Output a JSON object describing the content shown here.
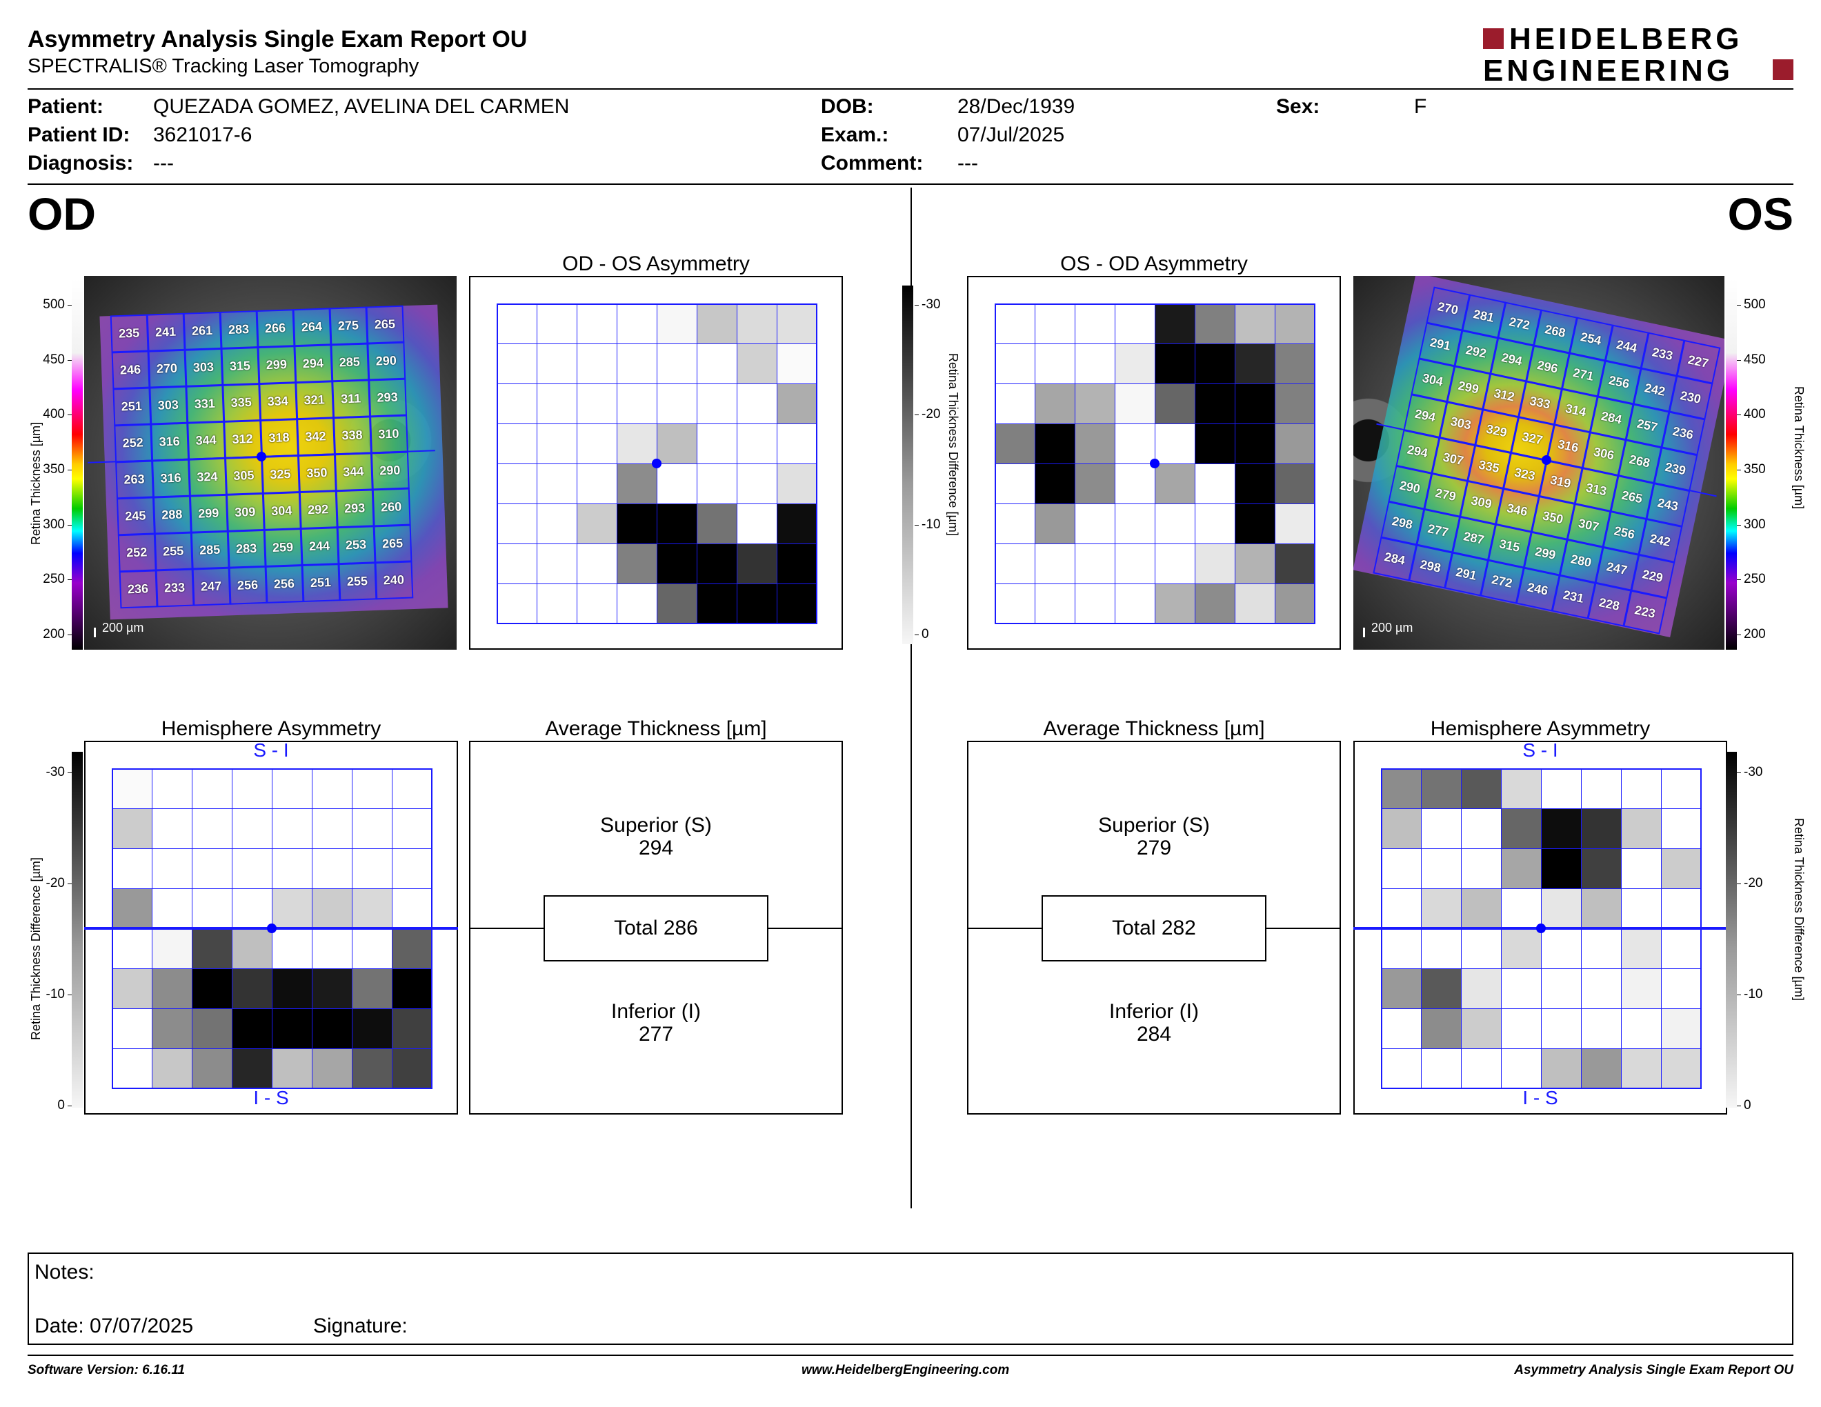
{
  "header": {
    "title": "Asymmetry Analysis Single Exam Report OU",
    "subtitle": "SPECTRALIS® Tracking Laser Tomography",
    "logo_line1": "HEIDELBERG",
    "logo_line2": "ENGINEERING",
    "logo_color": "#9b1c2c"
  },
  "patient": {
    "patient_label": "Patient:",
    "patient_value": "QUEZADA GOMEZ, AVELINA DEL CARMEN",
    "id_label": "Patient ID:",
    "id_value": "3621017-6",
    "diagnosis_label": "Diagnosis:",
    "diagnosis_value": "---",
    "dob_label": "DOB:",
    "dob_value": "28/Dec/1939",
    "exam_label": "Exam.:",
    "exam_value": "07/Jul/2025",
    "comment_label": "Comment:",
    "comment_value": "---",
    "sex_label": "Sex:",
    "sex_value": "F"
  },
  "eyes": {
    "od": "OD",
    "os": "OS"
  },
  "titles": {
    "od_os_asym": "OD - OS Asymmetry",
    "os_od_asym": "OS - OD Asymmetry",
    "hemi": "Hemisphere Asymmetry",
    "avg": "Average Thickness [µm]",
    "si": "S - I",
    "is": "I - S"
  },
  "axes": {
    "thickness_label": "Retina  Thickness [µm]",
    "thickness_ticks": [
      "500",
      "450",
      "400",
      "350",
      "300",
      "250",
      "200"
    ],
    "diff_label": "Retina Thickness Difference [µm]",
    "diff_ticks": [
      "-30",
      "-20",
      "-10",
      "0"
    ],
    "scale_bar": "200 µm"
  },
  "od": {
    "superior_label": "Superior (S)",
    "superior_value": "294",
    "total_label": "Total 286",
    "inferior_label": "Inferior (I)",
    "inferior_value": "277",
    "grid_values": [
      [
        "235",
        "241",
        "261",
        "283",
        "266",
        "264",
        "275",
        "265"
      ],
      [
        "246",
        "270",
        "303",
        "315",
        "299",
        "294",
        "285",
        "290"
      ],
      [
        "251",
        "303",
        "331",
        "335",
        "334",
        "321",
        "311",
        "293"
      ],
      [
        "252",
        "316",
        "344",
        "312",
        "318",
        "342",
        "338",
        "310"
      ],
      [
        "263",
        "316",
        "324",
        "305",
        "325",
        "350",
        "344",
        "290"
      ],
      [
        "245",
        "288",
        "299",
        "309",
        "304",
        "292",
        "293",
        "260"
      ],
      [
        "252",
        "255",
        "285",
        "283",
        "259",
        "244",
        "253",
        "265"
      ],
      [
        "236",
        "233",
        "247",
        "256",
        "256",
        "251",
        "255",
        "240"
      ]
    ],
    "asym_gray": [
      [
        0,
        0,
        0,
        0,
        3,
        22,
        14,
        12
      ],
      [
        0,
        0,
        0,
        0,
        0,
        0,
        18,
        2
      ],
      [
        0,
        0,
        0,
        0,
        0,
        0,
        0,
        32
      ],
      [
        0,
        0,
        0,
        10,
        25,
        0,
        0,
        0
      ],
      [
        0,
        0,
        0,
        45,
        0,
        0,
        0,
        12
      ],
      [
        0,
        0,
        20,
        100,
        100,
        55,
        0,
        95
      ],
      [
        0,
        0,
        0,
        50,
        100,
        100,
        80,
        100
      ],
      [
        0,
        0,
        0,
        0,
        60,
        100,
        100,
        100
      ]
    ],
    "hemi_gray": [
      [
        2,
        0,
        0,
        0,
        0,
        0,
        0,
        0
      ],
      [
        20,
        0,
        0,
        0,
        0,
        0,
        0,
        0
      ],
      [
        0,
        0,
        0,
        0,
        0,
        0,
        0,
        0
      ],
      [
        40,
        0,
        0,
        0,
        15,
        20,
        15,
        0
      ],
      [
        0,
        4,
        72,
        25,
        0,
        0,
        0,
        62
      ],
      [
        20,
        45,
        100,
        80,
        95,
        90,
        55,
        100
      ],
      [
        0,
        45,
        55,
        100,
        100,
        100,
        95,
        75
      ],
      [
        0,
        22,
        45,
        85,
        25,
        35,
        65,
        75
      ]
    ]
  },
  "os": {
    "superior_label": "Superior (S)",
    "superior_value": "279",
    "total_label": "Total 282",
    "inferior_label": "Inferior (I)",
    "inferior_value": "284",
    "grid_values": [
      [
        "270",
        "281",
        "272",
        "268",
        "254",
        "244",
        "233",
        "227"
      ],
      [
        "291",
        "292",
        "294",
        "296",
        "271",
        "256",
        "242",
        "230"
      ],
      [
        "304",
        "299",
        "312",
        "333",
        "314",
        "284",
        "257",
        "236"
      ],
      [
        "294",
        "303",
        "329",
        "327",
        "316",
        "306",
        "268",
        "239"
      ],
      [
        "294",
        "307",
        "335",
        "323",
        "319",
        "313",
        "265",
        "243"
      ],
      [
        "290",
        "279",
        "309",
        "346",
        "350",
        "307",
        "256",
        "242"
      ],
      [
        "298",
        "277",
        "287",
        "315",
        "299",
        "280",
        "247",
        "229"
      ],
      [
        "284",
        "298",
        "291",
        "272",
        "246",
        "231",
        "228",
        "223"
      ]
    ],
    "asym_gray": [
      [
        0,
        0,
        0,
        0,
        90,
        50,
        25,
        30
      ],
      [
        0,
        0,
        0,
        8,
        100,
        100,
        85,
        50
      ],
      [
        0,
        35,
        30,
        3,
        60,
        100,
        100,
        50
      ],
      [
        50,
        100,
        40,
        0,
        0,
        100,
        100,
        40
      ],
      [
        0,
        100,
        45,
        0,
        35,
        0,
        100,
        60
      ],
      [
        0,
        40,
        0,
        0,
        0,
        0,
        100,
        8
      ],
      [
        0,
        0,
        0,
        0,
        0,
        10,
        30,
        75
      ],
      [
        0,
        0,
        0,
        0,
        30,
        45,
        12,
        40
      ]
    ],
    "hemi_gray": [
      [
        45,
        55,
        65,
        15,
        0,
        0,
        0,
        0
      ],
      [
        25,
        0,
        0,
        60,
        95,
        80,
        20,
        0
      ],
      [
        0,
        0,
        0,
        35,
        100,
        75,
        0,
        20
      ],
      [
        0,
        15,
        25,
        0,
        10,
        25,
        0,
        0
      ],
      [
        0,
        0,
        0,
        15,
        0,
        0,
        10,
        0
      ],
      [
        40,
        65,
        10,
        0,
        0,
        0,
        5,
        0
      ],
      [
        0,
        45,
        20,
        0,
        0,
        0,
        0,
        5
      ],
      [
        0,
        0,
        0,
        0,
        25,
        40,
        15,
        15
      ]
    ]
  },
  "notes": {
    "notes_label": "Notes:",
    "date_label": "Date: 07/07/2025",
    "signature_label": "Signature:"
  },
  "footer": {
    "software": "Software Version: 6.16.11",
    "website": "www.HeidelbergEngineering.com",
    "report": "Asymmetry Analysis Single Exam Report OU"
  },
  "colors": {
    "grid": "#1a1aff",
    "accent": "#0000ff"
  }
}
